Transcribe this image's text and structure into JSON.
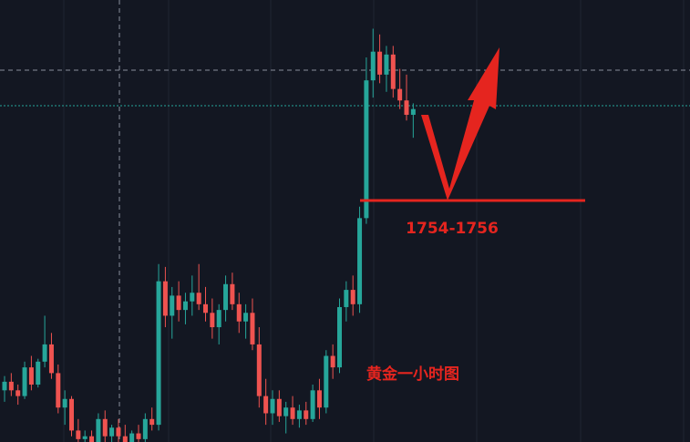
{
  "chart_data": {
    "type": "candlestick",
    "ylim": [
      1713,
      1790
    ],
    "up_color": "#26a69a",
    "down_color": "#ef5350",
    "annotation_color": "#e5251f",
    "annotations": [
      "1754-1756",
      "黄金一小时图"
    ],
    "open": [
      1722,
      1723.5,
      1722,
      1721,
      1726,
      1723,
      1727,
      1730,
      1725,
      1719,
      1720.5,
      1715,
      1713.5,
      1714,
      1713,
      1717,
      1714,
      1715.5,
      1714,
      1713,
      1714.5,
      1713.5,
      1717,
      1716,
      1741,
      1735,
      1738.5,
      1736,
      1737.5,
      1739,
      1737,
      1735.5,
      1733,
      1736,
      1740.5,
      1737,
      1734,
      1735.5,
      1730,
      1721,
      1718,
      1720.5,
      1717.5,
      1719,
      1717,
      1718.5,
      1717,
      1722,
      1719,
      1728,
      1726,
      1736.5,
      1739.5,
      1737,
      1752,
      1776,
      1781,
      1777,
      1780.5,
      1774.5,
      1772.5,
      1770
    ],
    "high": [
      1724.5,
      1725,
      1723,
      1727,
      1728,
      1727.5,
      1735,
      1732,
      1726.5,
      1722,
      1721,
      1717,
      1715,
      1715,
      1718,
      1718.5,
      1716,
      1717,
      1716,
      1715,
      1716,
      1718,
      1719,
      1744,
      1743.5,
      1740,
      1741,
      1739,
      1742,
      1744,
      1740,
      1738,
      1737,
      1742,
      1742.5,
      1739,
      1737,
      1738,
      1733,
      1724,
      1722,
      1722,
      1720,
      1721,
      1719.5,
      1720,
      1723,
      1724,
      1729,
      1730,
      1738,
      1741,
      1742,
      1754,
      1780,
      1785,
      1784,
      1782,
      1782,
      1778,
      1777,
      1772
    ],
    "low": [
      1720,
      1721,
      1719.5,
      1720.5,
      1722,
      1722.5,
      1726,
      1724,
      1718,
      1716,
      1714,
      1712,
      1712,
      1712,
      1712.5,
      1713,
      1712,
      1713,
      1712,
      1712,
      1712.5,
      1713,
      1715,
      1715,
      1733,
      1731,
      1734,
      1733.5,
      1735,
      1736,
      1734,
      1731,
      1730,
      1734,
      1736,
      1732,
      1731,
      1729,
      1719,
      1716,
      1716,
      1716.5,
      1714.5,
      1716,
      1715.5,
      1716,
      1716.5,
      1717,
      1718,
      1724,
      1725,
      1734,
      1735,
      1735.5,
      1751,
      1773,
      1775.5,
      1774,
      1773,
      1771,
      1769,
      1766
    ],
    "close": [
      1723.5,
      1722,
      1721,
      1726,
      1723,
      1727,
      1730,
      1725,
      1719,
      1720.5,
      1715,
      1713.5,
      1714,
      1713,
      1717,
      1714,
      1715.5,
      1714,
      1713,
      1714.5,
      1713.5,
      1717,
      1716,
      1741,
      1735,
      1738.5,
      1736,
      1737.5,
      1739,
      1737,
      1735.5,
      1733,
      1736,
      1740.5,
      1737,
      1734,
      1735.5,
      1730,
      1721,
      1718,
      1720.5,
      1717.5,
      1719,
      1717,
      1718.5,
      1717,
      1722,
      1719,
      1728,
      1726,
      1736.5,
      1739.5,
      1737,
      1752,
      1776,
      1781,
      1777,
      1780.5,
      1774.5,
      1772.5,
      1770,
      1771
    ]
  }
}
